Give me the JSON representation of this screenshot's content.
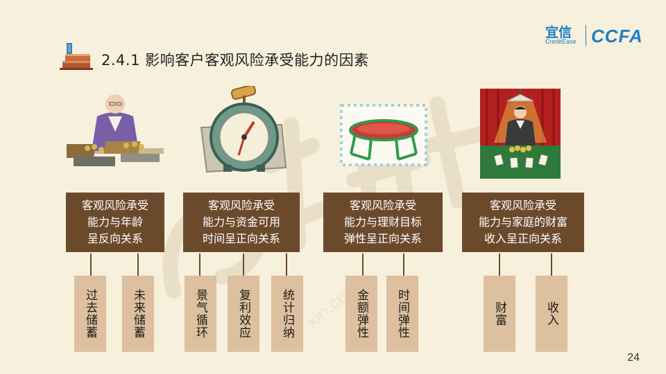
{
  "title": "2.4.1 影响客户客观风险承受能力的因素",
  "logo": {
    "cn": "宜信",
    "en": "CreditEase",
    "brand": "CCFA"
  },
  "watermark": "宜人理财 xin.com",
  "cards": [
    {
      "lines": [
        "客观风险承受",
        "能力与年龄",
        "呈反向关系"
      ],
      "factors": [
        "过去储蓄",
        "未来储蓄"
      ]
    },
    {
      "lines": [
        "客观风险承受",
        "能力与资金可用",
        "时间呈正向关系"
      ],
      "factors": [
        "景气循环",
        "复利效应",
        "统计归纳"
      ]
    },
    {
      "lines": [
        "客观风险承受",
        "能力与理财目标",
        "弹性呈正向关系"
      ],
      "factors": [
        "金额弹性",
        "时间弹性"
      ]
    },
    {
      "lines": [
        "客观风险承受",
        "能力与家庭的财富",
        "收入呈正向关系"
      ],
      "factors": [
        "财富",
        "收入"
      ]
    }
  ],
  "page_number": "24",
  "colors": {
    "background": "#f7f0dc",
    "main_box": "#6b4a2c",
    "factor_box": "#dcc09f",
    "logo": "#1f7fc4"
  }
}
